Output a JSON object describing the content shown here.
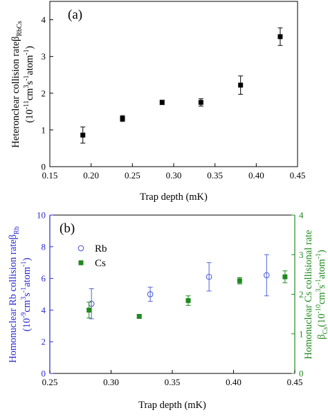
{
  "chart_data": [
    {
      "panel": "a",
      "panel_label": "(a)",
      "type": "scatter",
      "xlabel": "Trap depth (mK)",
      "ylabel_main": "Heteronclear collision rate",
      "ylabel_symbol": "β",
      "ylabel_subscript": "RbCs",
      "ylabel_units": {
        "open": "(10",
        "exp1": "-11",
        "mid1": "cm",
        "exp2": "3",
        "mid2": "s",
        "exp3": "-1",
        "mid3": "atom",
        "exp4": "-1",
        "close": ")"
      },
      "xlim": [
        0.15,
        0.45
      ],
      "ylim": [
        0,
        4.5
      ],
      "xticks": [
        "0.15",
        "0.20",
        "0.25",
        "0.30",
        "0.35",
        "0.40",
        "0.45"
      ],
      "yticks": [
        "0",
        "1",
        "2",
        "3",
        "4"
      ],
      "series": [
        {
          "marker": "filled-square",
          "color": "#000000",
          "x": [
            0.19,
            0.238,
            0.286,
            0.333,
            0.381,
            0.429
          ],
          "y": [
            0.86,
            1.31,
            1.75,
            1.75,
            2.22,
            3.54
          ],
          "yerr": [
            0.22,
            0.08,
            0.06,
            0.1,
            0.25,
            0.24
          ]
        }
      ]
    },
    {
      "panel": "b",
      "panel_label": "(b)",
      "type": "scatter",
      "xlabel": "Trap depth (mK)",
      "ylabel_left": {
        "main": "Homonuclear Rb collision rate",
        "symbol": "β",
        "subscript": "Rb",
        "open": "(10",
        "exp1": "-9",
        "mid1": "cm",
        "exp2": "3",
        "mid2": "s",
        "exp3": "-1",
        "mid3": "atom",
        "exp4": "-1",
        "close": ")"
      },
      "ylabel_right": {
        "main": "Homonuclear Cs collisional rate",
        "symbol": "β",
        "subscript": "Cs",
        "open": "(10",
        "exp1": "-10",
        "mid1": "cm",
        "exp2": "3",
        "mid2": "s",
        "exp3": "-1",
        "mid3": "atom",
        "exp4": "-1",
        "close": ")"
      },
      "xlim": [
        0.25,
        0.45
      ],
      "ylim_left": [
        0,
        10
      ],
      "ylim_right": [
        0,
        4
      ],
      "xticks": [
        "0.25",
        "0.30",
        "0.35",
        "0.40",
        "0.45"
      ],
      "yticks_left": [
        "0",
        "2",
        "4",
        "6",
        "8",
        "10"
      ],
      "yticks_right": [
        "0",
        "1",
        "2",
        "3",
        "4"
      ],
      "left_axis_color": "#2a2ad0",
      "right_axis_color": "#1e8a1e",
      "legend_position": "upper-left",
      "series": [
        {
          "name": "Rb",
          "marker": "open-circle",
          "axis": "left",
          "color": "#5060d8",
          "x": [
            0.284,
            0.332,
            0.38,
            0.427
          ],
          "y": [
            4.4,
            5.0,
            6.1,
            6.2
          ],
          "yerr": [
            0.95,
            0.45,
            0.9,
            1.3
          ]
        },
        {
          "name": "Cs",
          "marker": "filled-square",
          "axis": "right",
          "color": "#1e8a1e",
          "x": [
            0.282,
            0.323,
            0.363,
            0.405,
            0.442
          ],
          "y": [
            1.6,
            1.44,
            1.84,
            2.34,
            2.44
          ],
          "yerr": [
            0.2,
            0.05,
            0.12,
            0.08,
            0.15
          ]
        }
      ]
    }
  ]
}
